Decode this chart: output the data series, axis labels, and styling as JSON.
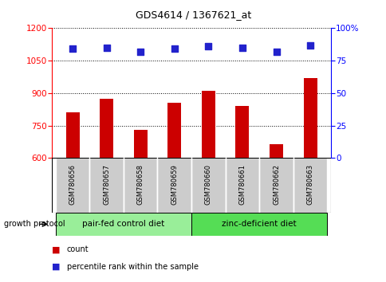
{
  "title": "GDS4614 / 1367621_at",
  "samples": [
    "GSM780656",
    "GSM780657",
    "GSM780658",
    "GSM780659",
    "GSM780660",
    "GSM780661",
    "GSM780662",
    "GSM780663"
  ],
  "counts": [
    810,
    875,
    730,
    855,
    910,
    840,
    665,
    970
  ],
  "percentiles": [
    84,
    85,
    82,
    84,
    86,
    85,
    82,
    87
  ],
  "ylim_left": [
    600,
    1200
  ],
  "ylim_right": [
    0,
    100
  ],
  "yticks_left": [
    600,
    750,
    900,
    1050,
    1200
  ],
  "yticks_right": [
    0,
    25,
    50,
    75,
    100
  ],
  "bar_color": "#cc0000",
  "dot_color": "#2222cc",
  "group1_label": "pair-fed control diet",
  "group2_label": "zinc-deficient diet",
  "group1_indices": [
    0,
    1,
    2,
    3
  ],
  "group2_indices": [
    4,
    5,
    6,
    7
  ],
  "group_bg_color": "#99ee99",
  "sample_bg_color": "#cccccc",
  "legend_count_label": "count",
  "legend_pct_label": "percentile rank within the sample",
  "growth_protocol_label": "growth protocol"
}
